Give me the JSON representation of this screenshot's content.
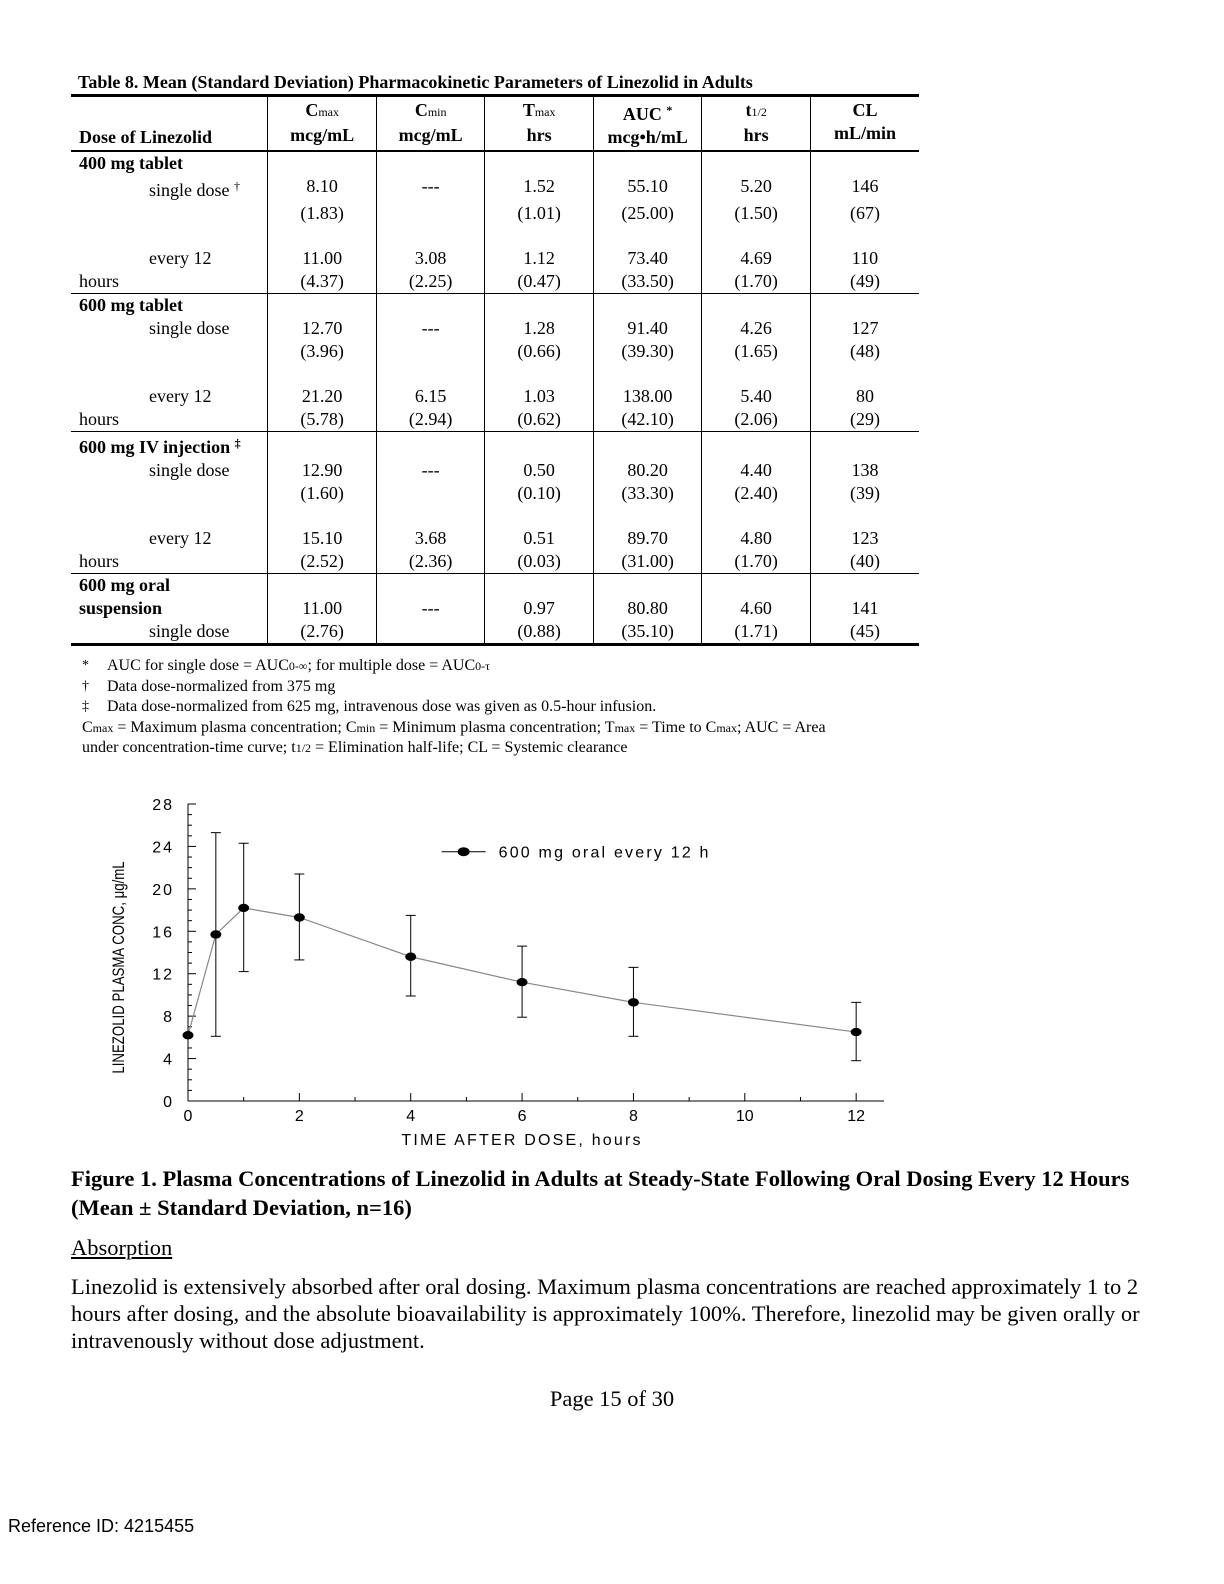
{
  "table": {
    "title": "Table 8. Mean (Standard Deviation) Pharmacokinetic Parameters of Linezolid in Adults",
    "header": {
      "dose": "Dose of Linezolid",
      "cmax_main": "C",
      "cmax_sub": "max",
      "cmax_unit": "mcg/mL",
      "cmin_main": "C",
      "cmin_sub": "min",
      "cmin_unit": "mcg/mL",
      "tmax_main": "T",
      "tmax_sub": "max",
      "tmax_unit": "hrs",
      "auc_main": "AUC",
      "auc_mark": "*",
      "auc_unit": "mcg•h/mL",
      "thalf_main": "t",
      "thalf_sub": "1/2",
      "thalf_unit": "hrs",
      "cl_main": "CL",
      "cl_unit": "mL/min"
    },
    "groups": [
      {
        "name": "400 mg tablet",
        "rows": [
          {
            "label": "single dose",
            "mark": "†",
            "means": [
              "8.10",
              "---",
              "1.52",
              "55.10",
              "5.20",
              "146"
            ],
            "sds": [
              "(1.83)",
              "",
              "(1.01)",
              "(25.00)",
              "(1.50)",
              "(67)"
            ]
          },
          {
            "label": "every 12",
            "label2": "hours",
            "means": [
              "11.00",
              "3.08",
              "1.12",
              "73.40",
              "4.69",
              "110"
            ],
            "sds": [
              "(4.37)",
              "(2.25)",
              "(0.47)",
              "(33.50)",
              "(1.70)",
              "(49)"
            ]
          }
        ]
      },
      {
        "name": "600 mg tablet",
        "rows": [
          {
            "label": "single dose",
            "means": [
              "12.70",
              "---",
              "1.28",
              "91.40",
              "4.26",
              "127"
            ],
            "sds": [
              "(3.96)",
              "",
              "(0.66)",
              "(39.30)",
              "(1.65)",
              "(48)"
            ]
          },
          {
            "label": "every 12",
            "label2": "hours",
            "means": [
              "21.20",
              "6.15",
              "1.03",
              "138.00",
              "5.40",
              "80"
            ],
            "sds": [
              "(5.78)",
              "(2.94)",
              "(0.62)",
              "(42.10)",
              "(2.06)",
              "(29)"
            ]
          }
        ]
      },
      {
        "name": "600 mg IV injection",
        "mark": "‡",
        "rows": [
          {
            "label": "single dose",
            "means": [
              "12.90",
              "---",
              "0.50",
              "80.20",
              "4.40",
              "138"
            ],
            "sds": [
              "(1.60)",
              "",
              "(0.10)",
              "(33.30)",
              "(2.40)",
              "(39)"
            ]
          },
          {
            "label": "every 12",
            "label2": "hours",
            "means": [
              "15.10",
              "3.68",
              "0.51",
              "89.70",
              "4.80",
              "123"
            ],
            "sds": [
              "(2.52)",
              "(2.36)",
              "(0.03)",
              "(31.00)",
              "(1.70)",
              "(40)"
            ]
          }
        ]
      },
      {
        "name": "600 mg oral",
        "name2": "suspension",
        "rows": [
          {
            "label": "single dose",
            "means": [
              "11.00",
              "---",
              "0.97",
              "80.80",
              "4.60",
              "141"
            ],
            "sds": [
              "(2.76)",
              "",
              "(0.88)",
              "(35.10)",
              "(1.71)",
              "(45)"
            ]
          }
        ]
      }
    ]
  },
  "footnotes": {
    "f1_mark": "*",
    "f1_text": "AUC for single dose = AUC",
    "f1_sub1": "0-∞",
    "f1_mid": "; for multiple dose = AUC",
    "f1_sub2": "0-τ",
    "f2_mark": "†",
    "f2_text": "Data dose-normalized from 375 mg",
    "f3_mark": "‡",
    "f3_text": "Data dose-normalized from 625 mg, intravenous dose was given as 0.5-hour infusion.",
    "abbr_line1_a": "C",
    "abbr_line1_b": "max",
    "abbr_line1_c": " = Maximum plasma concentration; C",
    "abbr_line1_d": "min",
    "abbr_line1_e": " = Minimum plasma concentration; T",
    "abbr_line1_f": "max",
    "abbr_line1_g": " = Time to C",
    "abbr_line1_h": "max",
    "abbr_line1_i": "; AUC = Area",
    "abbr_line2_a": "under concentration-time curve; t",
    "abbr_line2_b": "1/2",
    "abbr_line2_c": " = Elimination half-life; CL = Systemic clearance"
  },
  "chart_data": {
    "type": "line",
    "xlabel": "TIME AFTER DOSE, hours",
    "ylabel": "LINEZOLID PLASMA CONC, μg/mL",
    "xlim": [
      0,
      12.5
    ],
    "ylim": [
      0,
      28
    ],
    "x_ticks": [
      "0",
      "2",
      "4",
      "6",
      "8",
      "10",
      "12"
    ],
    "y_ticks": [
      "0",
      "4",
      "8",
      "12",
      "16",
      "20",
      "24",
      "28"
    ],
    "legend_position": "top-right",
    "series": [
      {
        "name": "600 mg oral every 12 h",
        "x": [
          0,
          0.5,
          1,
          2,
          4,
          6,
          8,
          12
        ],
        "y": [
          6.2,
          15.7,
          18.2,
          17.3,
          13.6,
          11.2,
          9.3,
          6.5
        ],
        "sd_low": [
          6.2,
          6.1,
          12.2,
          13.3,
          9.9,
          7.9,
          6.1,
          3.8
        ],
        "sd_high": [
          6.2,
          25.3,
          24.3,
          21.4,
          17.5,
          14.6,
          12.6,
          9.3
        ]
      }
    ],
    "colors": {
      "line": "#888888",
      "marker": "#000000",
      "axis": "#000000"
    }
  },
  "figure_caption": "Figure 1. Plasma Concentrations of Linezolid in Adults at Steady-State Following Oral Dosing Every 12 Hours (Mean ± Standard Deviation, n=16)",
  "section_heading": "Absorption",
  "body_text": "Linezolid is extensively absorbed after oral dosing. Maximum plasma concentrations are reached approximately 1 to 2 hours after dosing, and the absolute bioavailability is approximately 100%. Therefore, linezolid may be given orally or intravenously without dose adjustment.",
  "page_number": "Page 15 of 30",
  "reference_id": "Reference ID: 4215455"
}
